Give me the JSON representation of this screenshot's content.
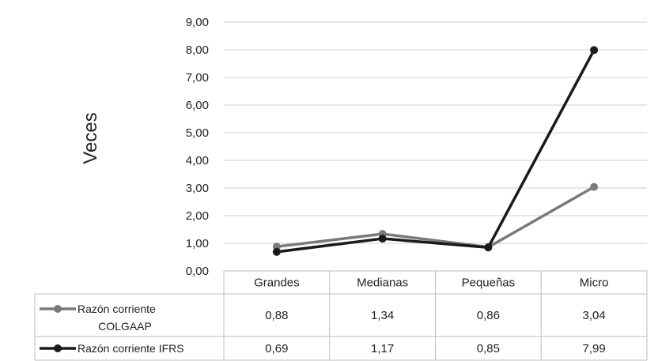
{
  "chart_data": {
    "type": "line",
    "ylabel": "Veces",
    "ylim": [
      0,
      9
    ],
    "yticks": [
      "0,00",
      "1,00",
      "2,00",
      "3,00",
      "4,00",
      "5,00",
      "6,00",
      "7,00",
      "8,00",
      "9,00"
    ],
    "grid": true,
    "legend": "data-table-left",
    "categories": [
      "Grandes",
      "Medianas",
      "Pequeñas",
      "Micro"
    ],
    "series": [
      {
        "name_lines": [
          "Razón corriente",
          "COLGAAP"
        ],
        "values": [
          0.88,
          1.34,
          0.86,
          3.04
        ],
        "labels": [
          "0,88",
          "1,34",
          "0,86",
          "3,04"
        ],
        "color": "#7a7a7a"
      },
      {
        "name_lines": [
          "Razón corriente IFRS"
        ],
        "values": [
          0.69,
          1.17,
          0.85,
          7.99
        ],
        "labels": [
          "0,69",
          "1,17",
          "0,85",
          "7,99"
        ],
        "color": "#1a1a1a"
      }
    ]
  },
  "colors": {
    "grid": "#cfcfcf",
    "table_border": "#bdbdbd"
  }
}
